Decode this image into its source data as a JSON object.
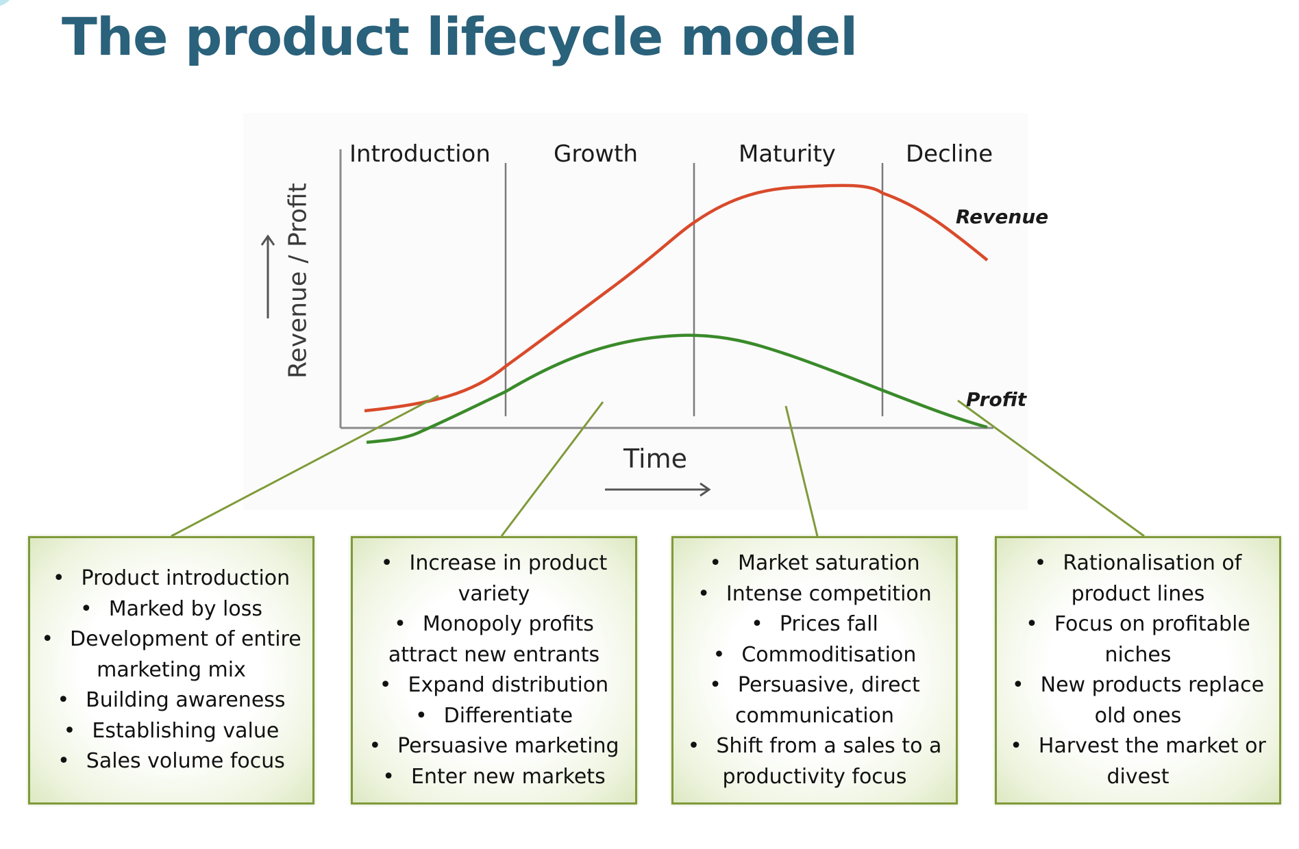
{
  "title": "The product lifecycle model",
  "chart": {
    "stages": [
      "Introduction",
      "Growth",
      "Maturity",
      "Decline"
    ],
    "y_axis_label": "Revenue / Profit",
    "x_axis_label": "Time",
    "revenue_label": "Revenue",
    "profit_label": "Profit",
    "colors": {
      "revenue": "#d94a2b",
      "profit": "#3a8a2a",
      "axis": "#8a8a8a",
      "divider": "#7a7a7a",
      "connector": "#7f9a3a"
    }
  },
  "stage_boxes": [
    {
      "items": [
        "Product introduction",
        "Marked by loss",
        "Development of entire marketing mix",
        "Building awareness",
        "Establishing value",
        "Sales volume focus"
      ]
    },
    {
      "items": [
        "Increase in product variety",
        "Monopoly profits attract new entrants",
        "Expand distribution",
        "Differentiate",
        "Persuasive marketing",
        "Enter new markets"
      ]
    },
    {
      "items": [
        "Market saturation",
        "Intense competition",
        "Prices fall",
        "Commoditisation",
        "Persuasive, direct communication",
        "Shift from a sales to a productivity focus"
      ]
    },
    {
      "items": [
        "Rationalisation of product lines",
        "Focus on profitable niches",
        "New products replace old ones",
        "Harvest the market or divest"
      ]
    }
  ]
}
